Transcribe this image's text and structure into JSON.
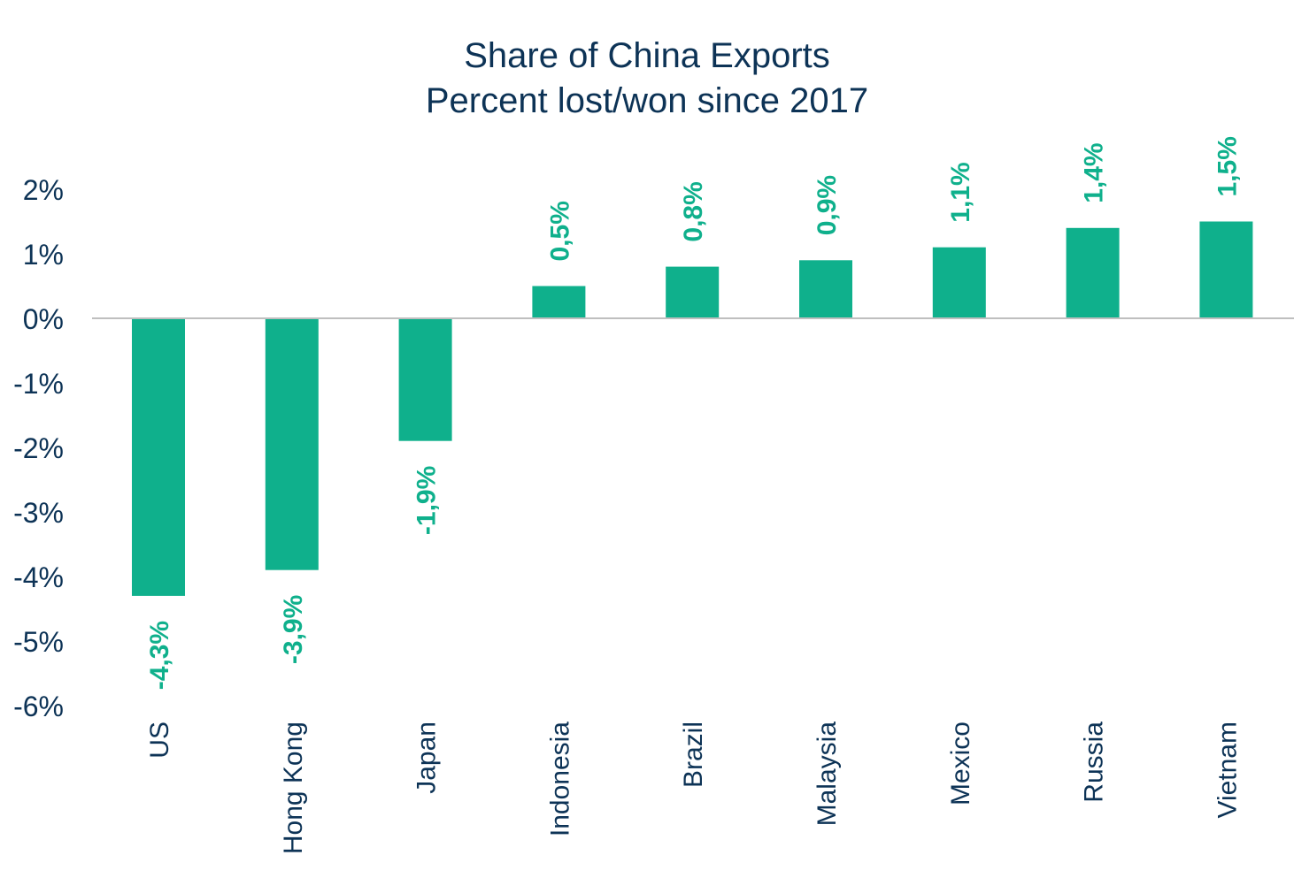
{
  "chart_data": {
    "type": "bar",
    "title": "Share of China Exports",
    "subtitle": "Percent lost/won since 2017",
    "categories": [
      "US",
      "Hong Kong",
      "Japan",
      "Indonesia",
      "Brazil",
      "Malaysia",
      "Mexico",
      "Russia",
      "Vietnam"
    ],
    "values": [
      -4.3,
      -3.9,
      -1.9,
      0.5,
      0.8,
      0.9,
      1.1,
      1.4,
      1.5
    ],
    "data_labels": [
      "-4,3%",
      "-3,9%",
      "-1,9%",
      "0,5%",
      "0,8%",
      "0,9%",
      "1,1%",
      "1,4%",
      "1,5%"
    ],
    "y_ticks": [
      2,
      1,
      0,
      -1,
      -2,
      -3,
      -4,
      -5,
      -6
    ],
    "y_tick_labels": [
      "2%",
      "1%",
      "0%",
      "-1%",
      "-2%",
      "-3%",
      "-4%",
      "-5%",
      "-6%"
    ],
    "ylim": [
      -6,
      2
    ],
    "xlabel": "",
    "ylabel": "",
    "grid": false,
    "legend": "none",
    "colors": {
      "bar": "#0fb08c",
      "label": "#0fb08c",
      "text": "#0d3356",
      "axis": "#bfbfbf"
    }
  }
}
